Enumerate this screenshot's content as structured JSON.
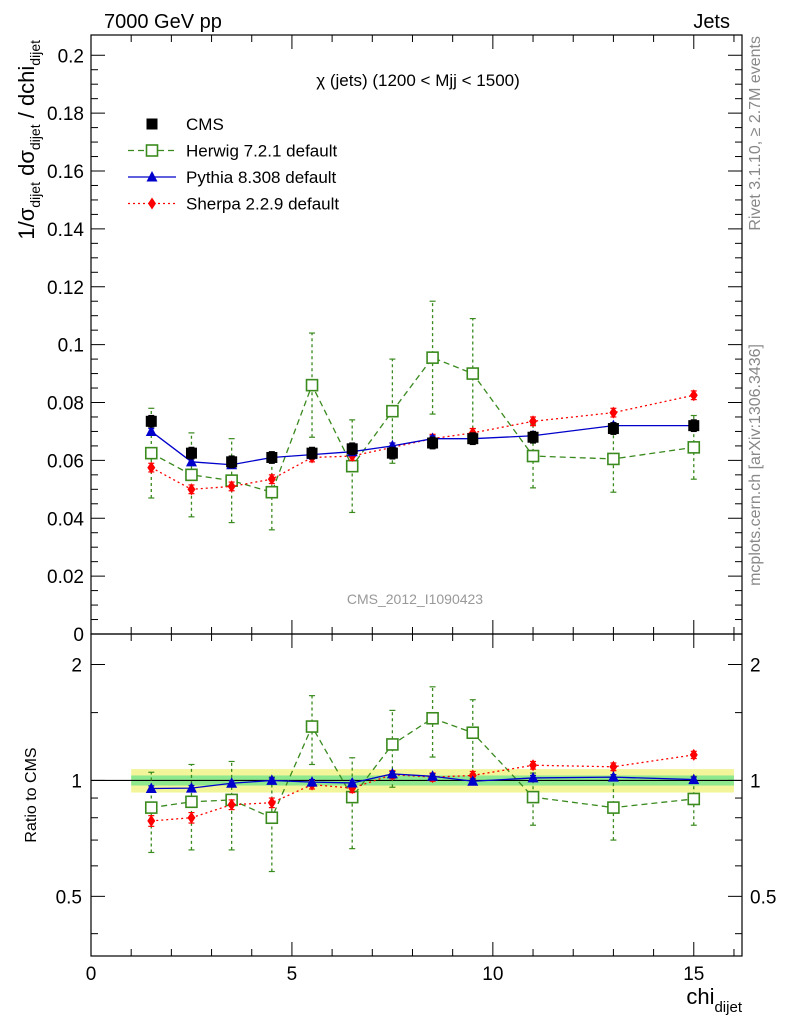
{
  "header": {
    "left": "7000 GeV pp",
    "right": "Jets"
  },
  "side_labels": {
    "rivet": "Rivet 3.1.10, ≥ 2.7M events",
    "source": "mcplots.cern.ch [arXiv:1306.3436]"
  },
  "analysis_id": "CMS_2012_I1090423",
  "chart_data": [
    {
      "type": "scatter",
      "panel": "main",
      "title": "χ (jets) (1200 < Mjj < 1500)",
      "xlabel": "chi_dijet",
      "ylabel": "1/σ_dijet dσ_dijet / dchi_dijet",
      "xlim": [
        0,
        16.2
      ],
      "ylim": [
        0,
        0.207
      ],
      "x_ticks": [
        "0",
        "5",
        "10",
        "15"
      ],
      "y_ticks": [
        "0",
        "0.02",
        "0.04",
        "0.06",
        "0.08",
        "0.1",
        "0.12",
        "0.14",
        "0.16",
        "0.18",
        "0.2"
      ],
      "legend_position": "top-left",
      "series": [
        {
          "name": "CMS",
          "style": "marker",
          "marker": "square-filled",
          "color": "#000000",
          "x": [
            1.5,
            2.5,
            3.5,
            4.5,
            5.5,
            6.5,
            7.5,
            8.5,
            9.5,
            11,
            13,
            15
          ],
          "y": [
            0.0735,
            0.0625,
            0.0595,
            0.061,
            0.0625,
            0.064,
            0.0625,
            0.066,
            0.0675,
            0.068,
            0.071,
            0.072
          ],
          "err": [
            0.002,
            0.002,
            0.002,
            0.002,
            0.002,
            0.002,
            0.002,
            0.002,
            0.002,
            0.002,
            0.002,
            0.002
          ]
        },
        {
          "name": "Herwig 7.2.1 default",
          "style": "dashed",
          "marker": "square-open",
          "color": "#3a8a1e",
          "x": [
            1.5,
            2.5,
            3.5,
            4.5,
            5.5,
            6.5,
            7.5,
            8.5,
            9.5,
            11,
            13,
            15
          ],
          "y": [
            0.0625,
            0.055,
            0.053,
            0.049,
            0.086,
            0.058,
            0.077,
            0.0955,
            0.09,
            0.0615,
            0.0605,
            0.0645
          ],
          "err": [
            0.0155,
            0.0145,
            0.0145,
            0.013,
            0.018,
            0.016,
            0.018,
            0.0195,
            0.019,
            0.011,
            0.0115,
            0.011
          ]
        },
        {
          "name": "Pythia 8.308 default",
          "style": "solid",
          "marker": "triangle-filled",
          "color": "#0000cc",
          "x": [
            1.5,
            2.5,
            3.5,
            4.5,
            5.5,
            6.5,
            7.5,
            8.5,
            9.5,
            11,
            13,
            15
          ],
          "y": [
            0.07,
            0.0595,
            0.0585,
            0.061,
            0.062,
            0.063,
            0.065,
            0.0675,
            0.0675,
            0.0685,
            0.072,
            0.072
          ],
          "err": [
            0.001,
            0.001,
            0.001,
            0.001,
            0.001,
            0.001,
            0.001,
            0.001,
            0.001,
            0.001,
            0.001,
            0.001
          ]
        },
        {
          "name": "Sherpa 2.2.9 default",
          "style": "dotted",
          "marker": "diamond-filled",
          "color": "#ff0000",
          "x": [
            1.5,
            2.5,
            3.5,
            4.5,
            5.5,
            6.5,
            7.5,
            8.5,
            9.5,
            11,
            13,
            15
          ],
          "y": [
            0.0575,
            0.05,
            0.051,
            0.0535,
            0.061,
            0.0615,
            0.0645,
            0.0675,
            0.0695,
            0.0735,
            0.0765,
            0.0825
          ],
          "err": [
            0.0015,
            0.0015,
            0.0015,
            0.0015,
            0.0015,
            0.0015,
            0.0015,
            0.0015,
            0.0015,
            0.0015,
            0.0015,
            0.0015
          ]
        }
      ]
    },
    {
      "type": "scatter",
      "panel": "ratio",
      "xlabel": "chi_dijet",
      "ylabel": "Ratio to CMS",
      "xlim": [
        0,
        16.2
      ],
      "ylim": [
        0.35,
        2.4
      ],
      "log_y": true,
      "x_ticks": [
        "0",
        "5",
        "10",
        "15"
      ],
      "y_ticks": [
        "0.5",
        "1",
        "2"
      ],
      "band_inner": 0.03,
      "band_outer": 0.07,
      "series": [
        {
          "name": "Herwig 7.2.1 default",
          "style": "dashed",
          "marker": "square-open",
          "color": "#3a8a1e",
          "x": [
            1.5,
            2.5,
            3.5,
            4.5,
            5.5,
            6.5,
            7.5,
            8.5,
            9.5,
            11,
            13,
            15
          ],
          "y": [
            0.85,
            0.88,
            0.89,
            0.8,
            1.38,
            0.905,
            1.24,
            1.45,
            1.33,
            0.905,
            0.85,
            0.895
          ],
          "err": [
            0.2,
            0.22,
            0.23,
            0.22,
            0.28,
            0.24,
            0.28,
            0.3,
            0.29,
            0.14,
            0.15,
            0.13
          ]
        },
        {
          "name": "Pythia 8.308 default",
          "style": "solid",
          "marker": "triangle-filled",
          "color": "#0000cc",
          "x": [
            1.5,
            2.5,
            3.5,
            4.5,
            5.5,
            6.5,
            7.5,
            8.5,
            9.5,
            11,
            13,
            15
          ],
          "y": [
            0.953,
            0.955,
            0.983,
            1.0,
            0.99,
            0.985,
            1.04,
            1.025,
            0.995,
            1.015,
            1.02,
            1.005
          ],
          "err": [
            0.015,
            0.015,
            0.015,
            0.015,
            0.015,
            0.015,
            0.015,
            0.015,
            0.015,
            0.015,
            0.015,
            0.015
          ]
        },
        {
          "name": "Sherpa 2.2.9 default",
          "style": "dotted",
          "marker": "diamond-filled",
          "color": "#ff0000",
          "x": [
            1.5,
            2.5,
            3.5,
            4.5,
            5.5,
            6.5,
            7.5,
            8.5,
            9.5,
            11,
            13,
            15
          ],
          "y": [
            0.785,
            0.8,
            0.865,
            0.875,
            0.975,
            0.955,
            1.035,
            1.02,
            1.03,
            1.095,
            1.085,
            1.165
          ],
          "err": [
            0.025,
            0.025,
            0.025,
            0.025,
            0.025,
            0.025,
            0.025,
            0.025,
            0.025,
            0.025,
            0.025,
            0.025
          ]
        }
      ]
    }
  ]
}
